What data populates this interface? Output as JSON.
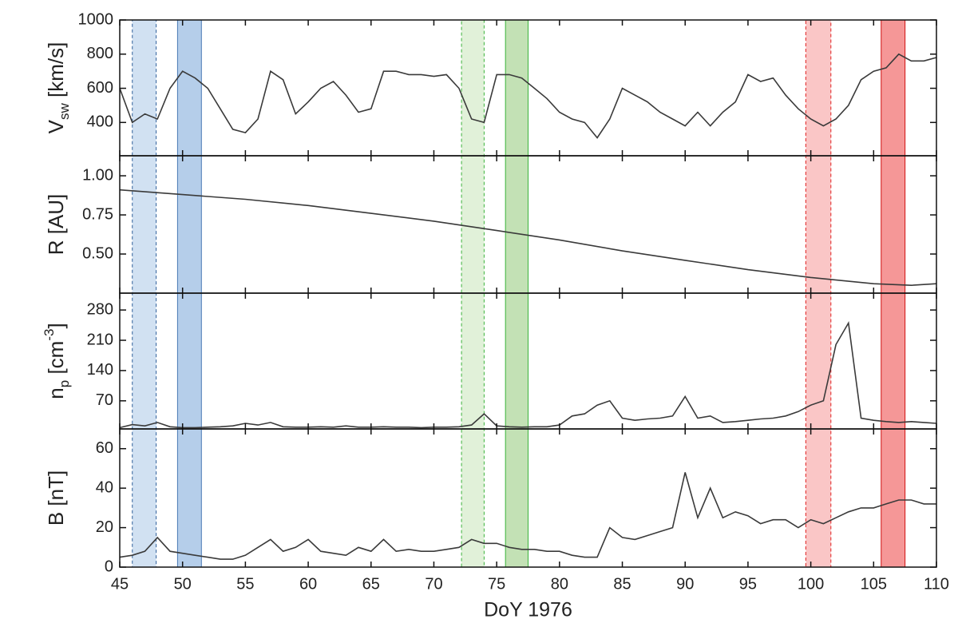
{
  "chart_data": [
    {
      "type": "line",
      "ylabel": [
        {
          "text": "V"
        },
        {
          "text": "sw",
          "sub": true
        },
        {
          "text": " [km/s]"
        }
      ],
      "xlim": [
        45,
        110
      ],
      "xticks": [
        45,
        50,
        55,
        60,
        65,
        70,
        75,
        80,
        85,
        90,
        95,
        100,
        105,
        110
      ],
      "ylim": [
        205,
        1000
      ],
      "yticks": [
        400,
        600,
        800,
        1000
      ],
      "series": [
        {
          "color": "#3a3a3a",
          "x": [
            45,
            46,
            47,
            48,
            49,
            50,
            51,
            52,
            53,
            54,
            55,
            56,
            57,
            58,
            59,
            60,
            61,
            62,
            63,
            64,
            65,
            66,
            67,
            68,
            69,
            70,
            71,
            72,
            73,
            74,
            75,
            76,
            77,
            78,
            79,
            80,
            81,
            82,
            83,
            84,
            85,
            86,
            87,
            88,
            89,
            90,
            91,
            92,
            93,
            94,
            95,
            96,
            97,
            98,
            99,
            100,
            101,
            102,
            103,
            104,
            105,
            106,
            107,
            108,
            109,
            110
          ],
          "values": [
            600,
            400,
            450,
            420,
            600,
            700,
            660,
            600,
            480,
            360,
            340,
            420,
            700,
            650,
            450,
            520,
            600,
            640,
            560,
            460,
            480,
            700,
            700,
            680,
            680,
            670,
            680,
            600,
            420,
            400,
            680,
            680,
            660,
            600,
            540,
            460,
            420,
            400,
            310,
            420,
            600,
            560,
            520,
            460,
            420,
            380,
            460,
            380,
            460,
            520,
            680,
            640,
            660,
            560,
            480,
            420,
            380,
            420,
            500,
            650,
            700,
            720,
            800,
            760,
            760,
            780
          ]
        }
      ]
    },
    {
      "type": "line",
      "ylabel": [
        {
          "text": "R [AU]"
        }
      ],
      "xlim": [
        45,
        110
      ],
      "xticks": [
        45,
        50,
        55,
        60,
        65,
        70,
        75,
        80,
        85,
        90,
        95,
        100,
        105,
        110
      ],
      "ylim": [
        0.25,
        1.128
      ],
      "yticks": [
        {
          "value": 0.5,
          "label": "0.50"
        },
        {
          "value": 0.75,
          "label": "0.75"
        },
        {
          "value": 1,
          "label": "1.00"
        }
      ],
      "series": [
        {
          "color": "#3a3a3a",
          "x": [
            45,
            50,
            55,
            60,
            65,
            70,
            75,
            80,
            85,
            90,
            95,
            100,
            105,
            108,
            110
          ],
          "values": [
            0.91,
            0.88,
            0.85,
            0.81,
            0.76,
            0.71,
            0.65,
            0.59,
            0.52,
            0.46,
            0.4,
            0.35,
            0.31,
            0.3,
            0.31
          ]
        }
      ]
    },
    {
      "type": "line",
      "ylabel": [
        {
          "text": "n"
        },
        {
          "text": "p",
          "sub": true
        },
        {
          "text": " [cm"
        },
        {
          "text": "-3",
          "sup": true
        },
        {
          "text": "]"
        }
      ],
      "xlim": [
        45,
        110
      ],
      "xticks": [
        45,
        50,
        55,
        60,
        65,
        70,
        75,
        80,
        85,
        90,
        95,
        100,
        105,
        110
      ],
      "ylim": [
        5,
        319
      ],
      "yticks": [
        70,
        140,
        210,
        280
      ],
      "series": [
        {
          "color": "#3a3a3a",
          "x": [
            45,
            46,
            47,
            48,
            49,
            50,
            51,
            52,
            53,
            54,
            55,
            56,
            57,
            58,
            59,
            60,
            61,
            62,
            63,
            64,
            65,
            66,
            67,
            68,
            69,
            70,
            71,
            72,
            73,
            74,
            75,
            76,
            77,
            78,
            79,
            80,
            81,
            82,
            83,
            84,
            85,
            86,
            87,
            88,
            89,
            90,
            91,
            92,
            93,
            94,
            95,
            96,
            97,
            98,
            99,
            100,
            101,
            102,
            103,
            104,
            105,
            106,
            107,
            108,
            109,
            110
          ],
          "values": [
            8,
            15,
            12,
            20,
            10,
            8,
            8,
            9,
            10,
            12,
            18,
            14,
            20,
            10,
            9,
            9,
            10,
            9,
            12,
            9,
            9,
            10,
            9,
            9,
            8,
            9,
            9,
            10,
            14,
            40,
            12,
            10,
            9,
            10,
            10,
            14,
            35,
            40,
            60,
            70,
            30,
            25,
            28,
            30,
            35,
            80,
            30,
            35,
            20,
            22,
            25,
            28,
            30,
            35,
            45,
            60,
            70,
            200,
            250,
            30,
            25,
            22,
            20,
            22,
            20,
            18
          ]
        }
      ]
    },
    {
      "type": "line",
      "ylabel": [
        {
          "text": "B [nT]"
        }
      ],
      "xlim": [
        45,
        110
      ],
      "xticks": [
        45,
        50,
        55,
        60,
        65,
        70,
        75,
        80,
        85,
        90,
        95,
        100,
        105,
        110
      ],
      "xticklabels": true,
      "xlabel": "DoY 1976",
      "ylim": [
        0,
        70
      ],
      "yticks": [
        0,
        20,
        40,
        60
      ],
      "series": [
        {
          "color": "#3a3a3a",
          "x": [
            45,
            46,
            47,
            48,
            49,
            50,
            51,
            52,
            53,
            54,
            55,
            56,
            57,
            58,
            59,
            60,
            61,
            62,
            63,
            64,
            65,
            66,
            67,
            68,
            69,
            70,
            71,
            72,
            73,
            74,
            75,
            76,
            77,
            78,
            79,
            80,
            81,
            82,
            83,
            84,
            85,
            86,
            87,
            88,
            89,
            90,
            91,
            92,
            93,
            94,
            95,
            96,
            97,
            98,
            99,
            100,
            101,
            102,
            103,
            104,
            105,
            106,
            107,
            108,
            109,
            110
          ],
          "values": [
            5,
            6,
            8,
            15,
            8,
            7,
            6,
            5,
            4,
            4,
            6,
            10,
            14,
            8,
            10,
            14,
            8,
            7,
            6,
            10,
            8,
            14,
            8,
            9,
            8,
            8,
            9,
            10,
            14,
            12,
            12,
            10,
            9,
            9,
            8,
            8,
            6,
            5,
            5,
            20,
            15,
            14,
            16,
            18,
            20,
            48,
            25,
            40,
            25,
            28,
            26,
            22,
            24,
            24,
            20,
            24,
            22,
            25,
            28,
            30,
            30,
            32,
            34,
            34,
            32,
            32
          ]
        }
      ]
    }
  ],
  "highlights": [
    {
      "start": 46,
      "end": 47.9,
      "color": "#c9dcf0",
      "edge": "#2f5f9a",
      "border": "dashed"
    },
    {
      "start": 49.6,
      "end": 51.5,
      "color": "#a8c6e6",
      "edge": "#4a7ab5",
      "border": "solid"
    },
    {
      "start": 72.2,
      "end": 74,
      "color": "#dcefd2",
      "edge": "#3bb33b",
      "border": "dashed"
    },
    {
      "start": 75.7,
      "end": 77.5,
      "color": "#b9dca8",
      "edge": "#3bb33b",
      "border": "solid"
    },
    {
      "start": 99.6,
      "end": 101.6,
      "color": "#f9bcbc",
      "edge": "#e02020",
      "border": "dashed"
    },
    {
      "start": 105.6,
      "end": 107.5,
      "color": "#f38585",
      "edge": "#d01010",
      "border": "solid"
    }
  ]
}
